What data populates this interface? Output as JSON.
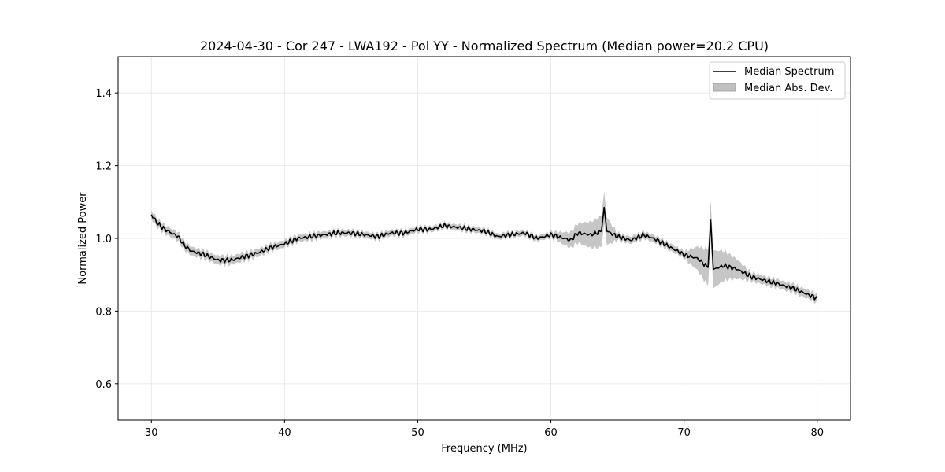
{
  "chart_data": {
    "type": "line",
    "title": "2024-04-30 - Cor 247 - LWA192 - Pol YY - Normalized Spectrum (Median power=20.2 CPU)",
    "xlabel": "Frequency (MHz)",
    "ylabel": "Normalized Power",
    "xlim": [
      27.5,
      82.5
    ],
    "ylim": [
      0.5,
      1.5
    ],
    "xticks": [
      30,
      40,
      50,
      60,
      70,
      80
    ],
    "yticks": [
      0.6,
      0.8,
      1.0,
      1.2,
      1.4
    ],
    "xtick_labels": [
      "30",
      "40",
      "50",
      "60",
      "70",
      "80"
    ],
    "ytick_labels": [
      "0.6",
      "0.8",
      "1.0",
      "1.2",
      "1.4"
    ],
    "grid": true,
    "legend_position": "top-right",
    "series": [
      {
        "name": "Median Spectrum",
        "color": "#000000",
        "x": [
          30,
          30.5,
          31,
          31.5,
          32,
          32.5,
          33,
          34,
          35,
          36,
          37,
          38,
          39,
          40,
          41,
          42,
          43,
          44,
          45,
          46,
          47,
          48,
          49,
          50,
          51,
          52,
          53,
          54,
          55,
          56,
          57,
          58,
          59,
          60,
          61,
          61.5,
          62,
          63,
          63.8,
          64,
          64.2,
          65,
          66,
          67,
          68,
          69,
          70,
          71,
          71.8,
          72,
          72.2,
          73,
          74,
          75,
          76,
          77,
          78,
          79,
          80
        ],
        "y": [
          1.065,
          1.04,
          1.025,
          1.015,
          1.005,
          0.98,
          0.965,
          0.955,
          0.94,
          0.94,
          0.95,
          0.96,
          0.975,
          0.985,
          1.0,
          1.005,
          1.01,
          1.015,
          1.015,
          1.01,
          1.005,
          1.015,
          1.015,
          1.025,
          1.025,
          1.035,
          1.03,
          1.025,
          1.02,
          1.005,
          1.01,
          1.015,
          1.0,
          1.01,
          1.0,
          0.995,
          1.015,
          1.01,
          1.02,
          1.085,
          1.02,
          1.005,
          0.995,
          1.01,
          0.995,
          0.975,
          0.955,
          0.945,
          0.92,
          1.05,
          0.915,
          0.925,
          0.915,
          0.895,
          0.885,
          0.875,
          0.865,
          0.85,
          0.835
        ]
      },
      {
        "name": "Median Abs. Dev.",
        "type": "band",
        "color": "#c0c0c0",
        "x": [
          30,
          36,
          40,
          50,
          60,
          64,
          65,
          70,
          72,
          75,
          80
        ],
        "half_width": [
          0.012,
          0.012,
          0.01,
          0.008,
          0.008,
          0.045,
          0.01,
          0.01,
          0.055,
          0.012,
          0.012
        ]
      }
    ]
  }
}
